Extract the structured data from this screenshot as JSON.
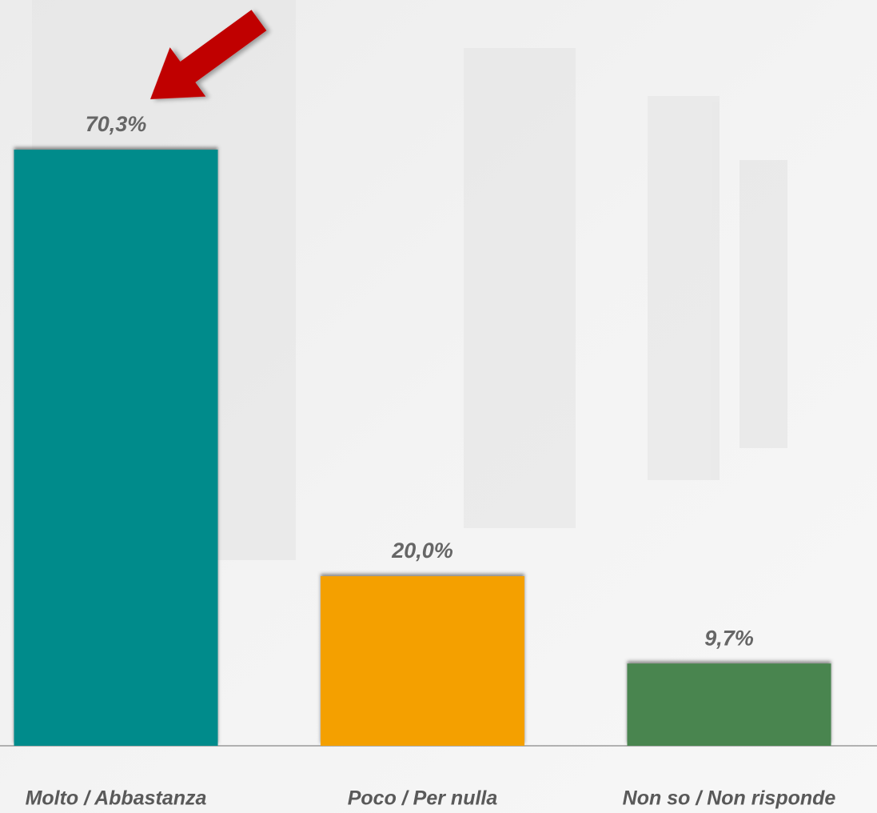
{
  "chart_data": {
    "type": "bar",
    "categories": [
      "Molto / Abbastanza",
      "Poco / Per nulla",
      "Non so / Non risponde"
    ],
    "values": [
      70.3,
      20.0,
      9.7
    ],
    "value_labels": [
      "70,3%",
      "20,0%",
      "9,7%"
    ],
    "colors": [
      "#008b8b",
      "#f4a000",
      "#4a8550"
    ]
  }
}
